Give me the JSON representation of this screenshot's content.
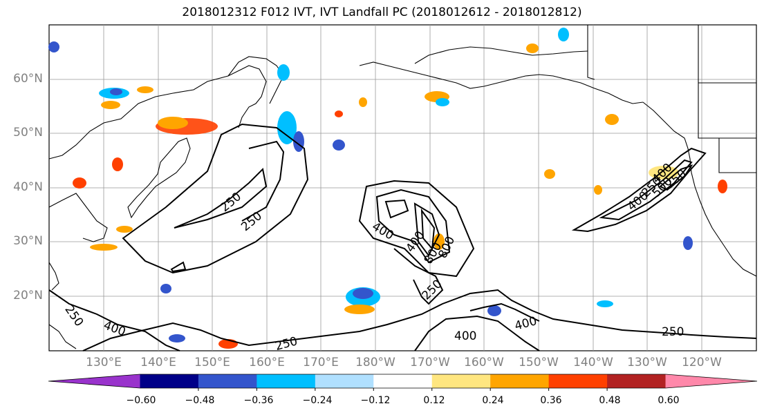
{
  "title": "2018012312 F012 IVT, IVT Landfall PC (2018012612 - 2018012812)",
  "lat_labels": [
    "60°N",
    "50°N",
    "40°N",
    "30°N",
    "20°N"
  ],
  "lon_labels": [
    "130°E",
    "140°E",
    "150°E",
    "160°E",
    "170°E",
    "180°W",
    "170°W",
    "160°W",
    "150°W",
    "140°W",
    "130°W",
    "120°W"
  ],
  "contour_labels": [
    "250",
    "250",
    "400",
    "400",
    "800",
    "800",
    "250",
    "400",
    "400",
    "250",
    "250",
    "400",
    "400",
    "250",
    "250",
    "400",
    "250",
    "500"
  ],
  "colorbar": {
    "colors": [
      "#9933cc",
      "#000088",
      "#3355cc",
      "#00bfff",
      "#b0e0ff",
      "#ffffff",
      "#ffe680",
      "#ffa500",
      "#ff4000",
      "#b22222",
      "#ff88aa"
    ],
    "tick_labels": [
      "−0.60",
      "−0.48",
      "−0.36",
      "−0.24",
      "−0.12",
      "0.12",
      "0.24",
      "0.36",
      "0.48",
      "0.60"
    ]
  },
  "palette": {
    "land_line": "#000000",
    "grid": "#999999",
    "axis_label": "#808080"
  }
}
